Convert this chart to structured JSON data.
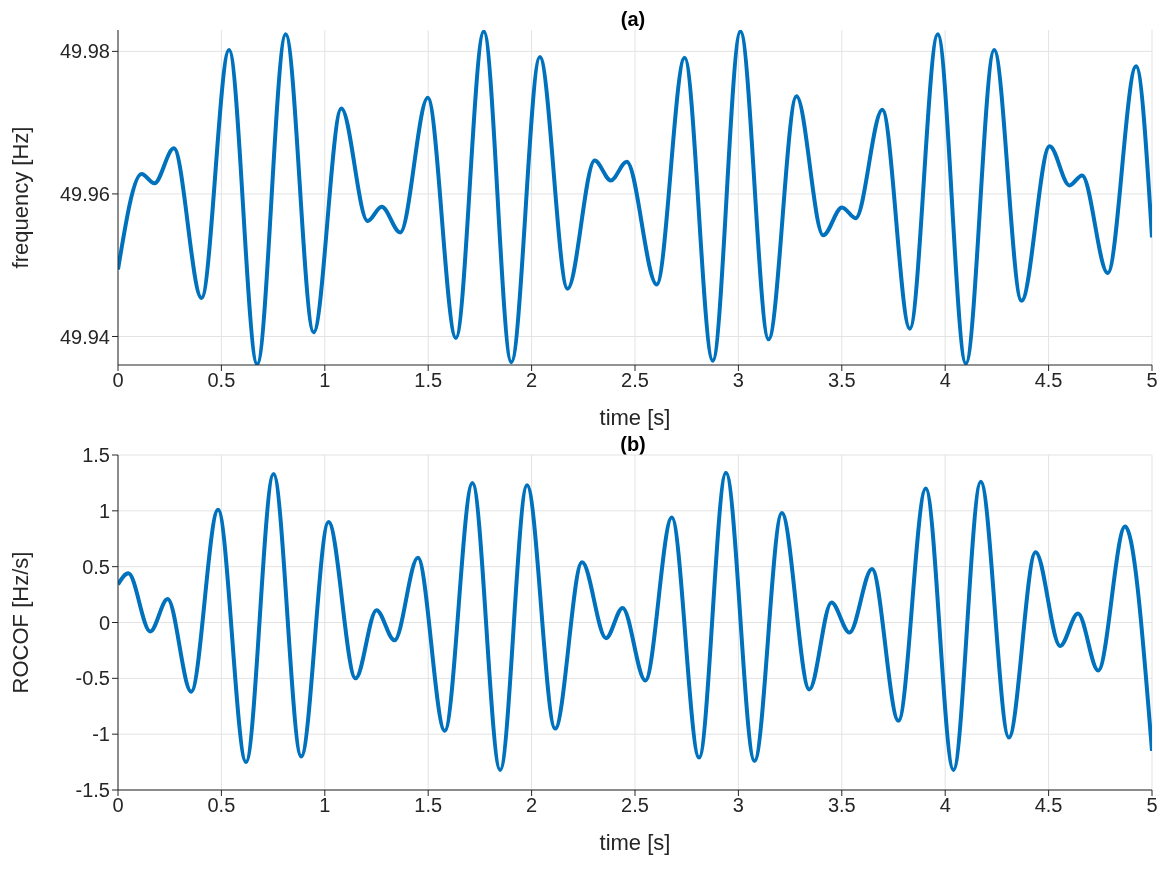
{
  "chart_data": [
    {
      "type": "line",
      "title": "(a)",
      "xlabel": "time [s]",
      "ylabel": "frequency [Hz]",
      "xlim": [
        0,
        5
      ],
      "xticks": [
        0,
        0.5,
        1,
        1.5,
        2,
        2.5,
        3,
        3.5,
        4,
        4.5,
        5
      ],
      "ylim": [
        49.936,
        49.983
      ],
      "yticks": [
        49.94,
        49.96,
        49.98
      ],
      "grid": true,
      "series": [
        {
          "color": "#0072bd",
          "x": [
            0,
            0.114,
            0.176,
            0.27,
            0.404,
            0.537,
            0.673,
            0.811,
            0.946,
            1.08,
            1.207,
            1.275,
            1.365,
            1.498,
            1.634,
            1.769,
            1.902,
            2.04,
            2.174,
            2.305,
            2.383,
            2.46,
            2.605,
            2.74,
            2.876,
            3.01,
            3.146,
            3.281,
            3.41,
            3.501,
            3.567,
            3.696,
            3.829,
            3.964,
            4.1,
            4.237,
            4.369,
            4.505,
            4.601,
            4.662,
            4.786,
            4.923,
            5
          ],
          "values": [
            49.9494,
            49.9628,
            49.9615,
            49.9664,
            49.9454,
            49.9802,
            49.9361,
            49.9824,
            49.9406,
            49.972,
            49.9562,
            49.9582,
            49.9546,
            49.9735,
            49.9398,
            49.9828,
            49.9364,
            49.9792,
            49.9467,
            49.9647,
            49.9619,
            49.9645,
            49.9473,
            49.9791,
            49.9366,
            49.9828,
            49.9396,
            49.9737,
            49.9542,
            49.9581,
            49.9566,
            49.9718,
            49.9411,
            49.9824,
            49.9362,
            49.9802,
            49.945,
            49.9667,
            49.9612,
            49.9626,
            49.9489,
            49.9779,
            49.9539
          ]
        }
      ]
    },
    {
      "type": "line",
      "title": "(b)",
      "xlabel": "time [s]",
      "ylabel": "ROCOF [Hz/s]",
      "xlim": [
        0,
        5
      ],
      "xticks": [
        0,
        0.5,
        1,
        1.5,
        2,
        2.5,
        3,
        3.5,
        4,
        4.5,
        5
      ],
      "ylim": [
        -1.5,
        1.5
      ],
      "yticks": [
        -1.5,
        -1,
        -0.5,
        0,
        0.5,
        1,
        1.5
      ],
      "grid": true,
      "series": [
        {
          "color": "#0072bd",
          "x": [
            0,
            0.05,
            0.156,
            0.24,
            0.354,
            0.484,
            0.619,
            0.752,
            0.886,
            1.018,
            1.149,
            1.25,
            1.337,
            1.45,
            1.58,
            1.714,
            1.848,
            1.978,
            2.114,
            2.244,
            2.36,
            2.44,
            2.55,
            2.678,
            2.81,
            2.94,
            3.078,
            3.21,
            3.343,
            3.45,
            3.537,
            3.646,
            3.774,
            3.906,
            4.04,
            4.172,
            4.308,
            4.437,
            4.556,
            4.642,
            4.74,
            4.87,
            5
          ],
          "values": [
            0.34,
            0.44,
            -0.08,
            0.21,
            -0.62,
            1.01,
            -1.25,
            1.33,
            -1.2,
            0.9,
            -0.5,
            0.11,
            -0.16,
            0.58,
            -0.97,
            1.25,
            -1.32,
            1.23,
            -0.95,
            0.54,
            -0.14,
            0.13,
            -0.52,
            0.94,
            -1.21,
            1.34,
            -1.24,
            0.98,
            -0.6,
            0.18,
            -0.09,
            0.48,
            -0.88,
            1.2,
            -1.32,
            1.26,
            -1.03,
            0.63,
            -0.21,
            0.08,
            -0.43,
            0.86,
            -1.15
          ]
        }
      ]
    }
  ]
}
